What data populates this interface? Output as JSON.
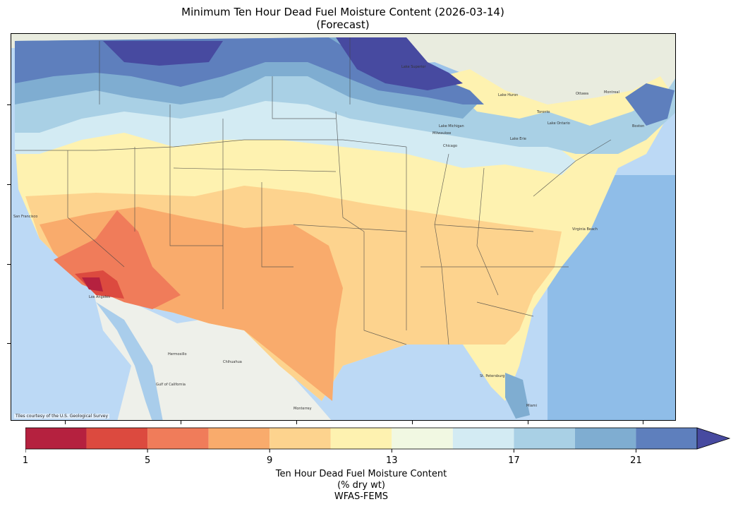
{
  "title": {
    "line1": "Minimum Ten Hour Dead Fuel Moisture Content (2026-03-14)",
    "line2": "(Forecast)"
  },
  "map": {
    "attribution": "Tiles courtesy of the U.S. Geological Survey",
    "place_labels": [
      "Lake Superior",
      "Lake Michigan",
      "Lake Huron",
      "Lake Erie",
      "Lake Ontario",
      "Milwaukee",
      "Chicago",
      "Toronto",
      "Ottawa",
      "Montreal",
      "Boston",
      "San Francisco",
      "Los Angeles",
      "Hermosillo",
      "Chihuahua",
      "Monterrey",
      "Gulf of California",
      "Virginia Beach",
      "Miami",
      "St. Petersburg"
    ]
  },
  "colorbar": {
    "title_lines": [
      "Ten Hour Dead Fuel Moisture Content",
      "(% dry wt)",
      "WFAS-FEMS"
    ],
    "tick_labels": [
      "1",
      "5",
      "9",
      "13",
      "17",
      "21"
    ],
    "tick_values": [
      1,
      5,
      9,
      13,
      17,
      21
    ],
    "vmin": 1,
    "vmax": 23,
    "bin_edges": [
      1,
      3,
      5,
      7,
      9,
      11,
      13,
      15,
      17,
      19,
      21,
      23
    ],
    "bin_colors": [
      "#b5213f",
      "#dc4a3f",
      "#f07c5a",
      "#f9ab6c",
      "#fdd38e",
      "#fef2b0",
      "#f1f8e2",
      "#d3ebf3",
      "#a9d0e5",
      "#7fadd1",
      "#5e7fbd"
    ],
    "extend_color": "#474aa0",
    "extend": "max"
  },
  "colors": {
    "ocean": "#bcd9f5",
    "land_other": "#e9ecdf",
    "state_borders": "#444444"
  }
}
